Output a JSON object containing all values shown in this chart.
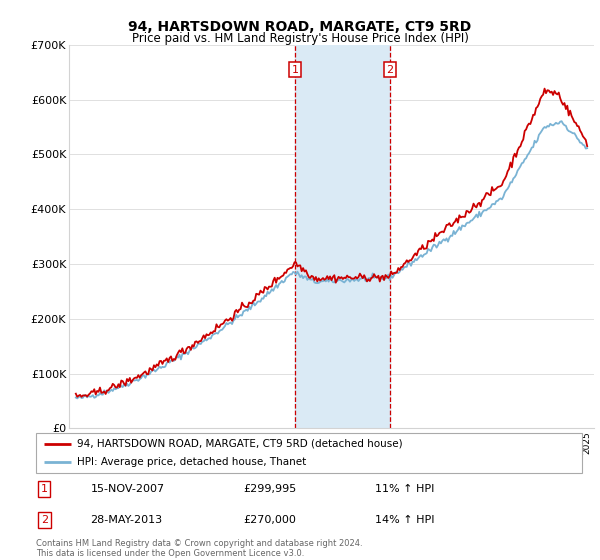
{
  "title": "94, HARTSDOWN ROAD, MARGATE, CT9 5RD",
  "subtitle": "Price paid vs. HM Land Registry's House Price Index (HPI)",
  "legend_line1": "94, HARTSDOWN ROAD, MARGATE, CT9 5RD (detached house)",
  "legend_line2": "HPI: Average price, detached house, Thanet",
  "transaction1_date": "15-NOV-2007",
  "transaction1_price": "£299,995",
  "transaction1_hpi": "11% ↑ HPI",
  "transaction2_date": "28-MAY-2013",
  "transaction2_price": "£270,000",
  "transaction2_hpi": "14% ↑ HPI",
  "footer": "Contains HM Land Registry data © Crown copyright and database right 2024.\nThis data is licensed under the Open Government Licence v3.0.",
  "red_color": "#cc0000",
  "blue_color": "#7ab3d4",
  "shade_color": "#daeaf5",
  "ylim_min": 0,
  "ylim_max": 700000,
  "transaction1_x": 2007.88,
  "transaction2_x": 2013.41,
  "xmin": 1994.6,
  "xmax": 2025.4
}
